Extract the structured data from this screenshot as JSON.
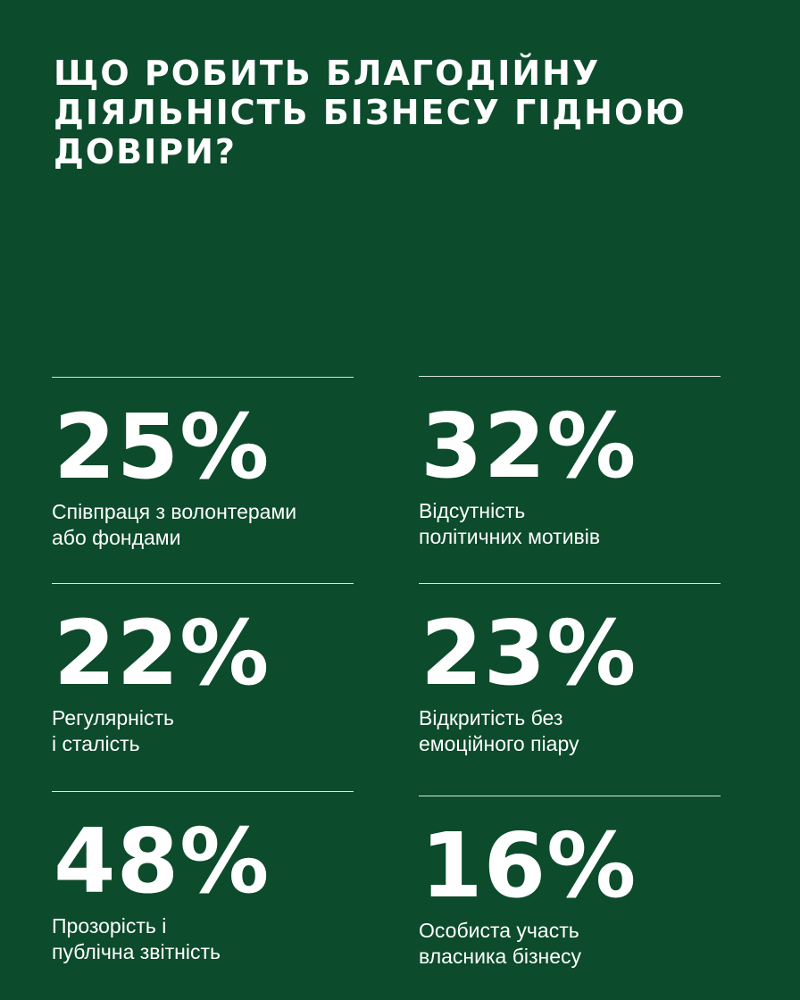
{
  "title": "Що робить благодійну діяльність бізнесу гідною довіри?",
  "stats": [
    {
      "value": "25%",
      "label_lines": [
        "Співпраця з волонтерами",
        "або фондами"
      ]
    },
    {
      "value": "32%",
      "label_lines": [
        "Відсутність",
        "політичних мотивів"
      ]
    },
    {
      "value": "22%",
      "label_lines": [
        "Регулярність",
        "і сталість"
      ]
    },
    {
      "value": "23%",
      "label_lines": [
        "Відкритість без",
        "емоційного піару"
      ]
    },
    {
      "value": "48%",
      "label_lines": [
        "Прозорість і",
        "публічна звітність"
      ]
    },
    {
      "value": "16%",
      "label_lines": [
        "Особиста участь",
        "власника бізнесу"
      ]
    }
  ],
  "colors": {
    "background": "#0c4b2b",
    "text": "#ffffff",
    "rule": "#d8e6dd"
  }
}
